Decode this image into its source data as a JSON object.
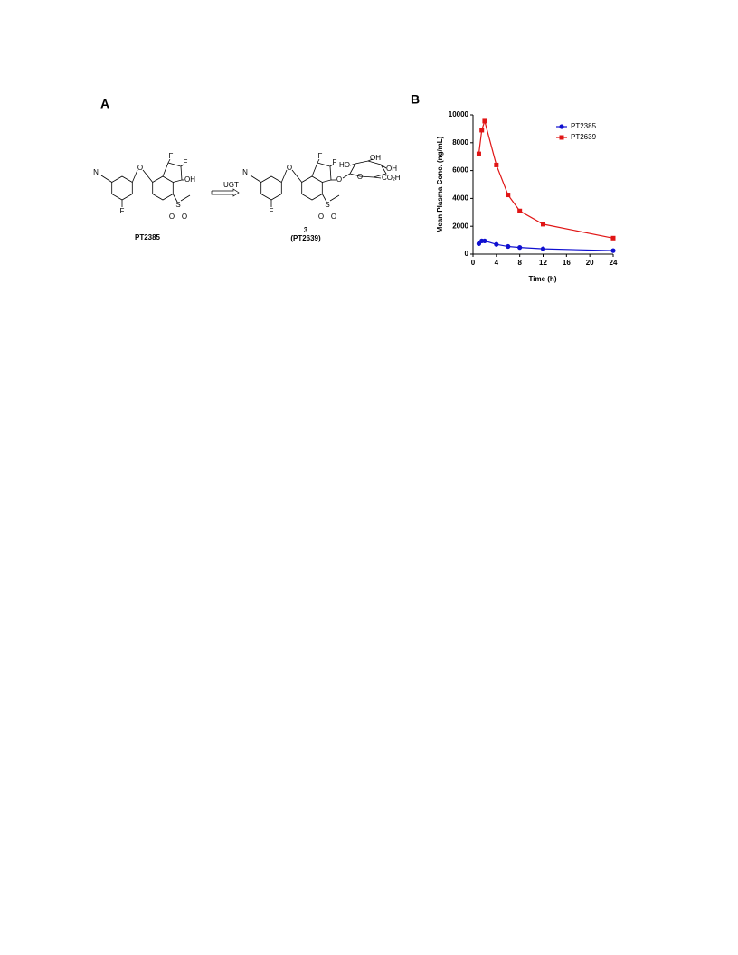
{
  "figure": {
    "panel_labels": [
      "A",
      "B"
    ],
    "reaction": {
      "enzyme": "UGT"
    },
    "compounds": [
      {
        "name": "PT2385",
        "atoms": [
          "N",
          "F",
          "O",
          "F",
          "F",
          "OH",
          "S",
          "O",
          "O"
        ]
      },
      {
        "name": "3",
        "alias": "(PT2639)",
        "atoms": [
          "N",
          "F",
          "O",
          "F",
          "F",
          "O",
          "S",
          "O",
          "O",
          "HO",
          "OH",
          "OH",
          "O",
          "CO",
          "2",
          "H"
        ]
      }
    ]
  },
  "chart_data": {
    "type": "line",
    "xlabel": "Time (h)",
    "ylabel": "Mean Plasma Conc. (ng/mL)",
    "x": [
      1,
      1.5,
      2,
      4,
      6,
      8,
      12,
      24
    ],
    "series": [
      {
        "name": "PT2385",
        "color": "#1010d0",
        "marker": "circle",
        "values": [
          750,
          950,
          950,
          700,
          550,
          480,
          380,
          250
        ]
      },
      {
        "name": "PT2639",
        "color": "#e01515",
        "marker": "square",
        "values": [
          7200,
          8900,
          9550,
          6400,
          4250,
          3100,
          2150,
          1150
        ]
      }
    ],
    "xlim": [
      0,
      24
    ],
    "xticks": [
      0,
      4,
      8,
      12,
      16,
      20,
      24
    ],
    "ylim": [
      0,
      10000
    ],
    "yticks": [
      0,
      2000,
      4000,
      6000,
      8000,
      10000
    ],
    "legend": "upper right"
  }
}
